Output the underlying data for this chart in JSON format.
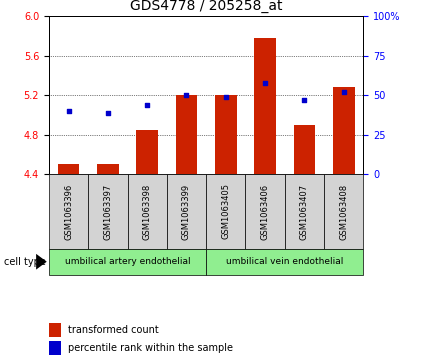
{
  "title": "GDS4778 / 205258_at",
  "samples": [
    "GSM1063396",
    "GSM1063397",
    "GSM1063398",
    "GSM1063399",
    "GSM1063405",
    "GSM1063406",
    "GSM1063407",
    "GSM1063408"
  ],
  "transformed_count": [
    4.5,
    4.5,
    4.85,
    5.2,
    5.2,
    5.78,
    4.9,
    5.28
  ],
  "percentile_rank": [
    40,
    39,
    44,
    50,
    49,
    58,
    47,
    52
  ],
  "ylim_left": [
    4.4,
    6.0
  ],
  "ylim_right": [
    0,
    100
  ],
  "yticks_left": [
    4.4,
    4.8,
    5.2,
    5.6,
    6.0
  ],
  "yticks_right": [
    0,
    25,
    50,
    75,
    100
  ],
  "yticklabels_right": [
    "0",
    "25",
    "50",
    "75",
    "100%"
  ],
  "bar_color": "#cc2200",
  "point_color": "#0000cc",
  "group1_label": "umbilical artery endothelial",
  "group2_label": "umbilical vein endothelial",
  "group_color": "#90ee90",
  "sample_box_color": "#d3d3d3",
  "legend_bar_label": "transformed count",
  "legend_point_label": "percentile rank within the sample",
  "cell_type_label": "cell type",
  "title_fontsize": 10,
  "tick_fontsize": 7,
  "label_fontsize": 6,
  "celltype_fontsize": 6.5,
  "legend_fontsize": 7
}
